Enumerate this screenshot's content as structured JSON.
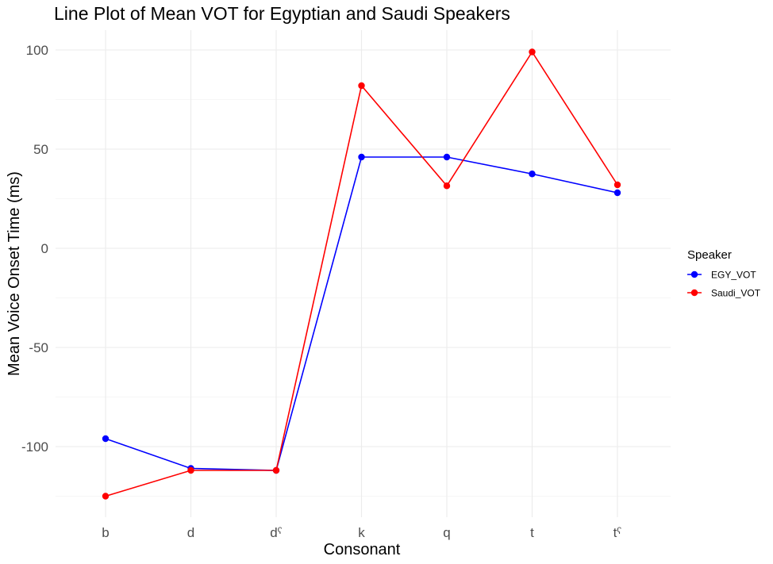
{
  "chart_data": {
    "type": "line",
    "title": "Line Plot of Mean VOT for Egyptian and Saudi Speakers",
    "xlabel": "Consonant",
    "ylabel": "Mean Voice Onset Time (ms)",
    "categories": [
      "b",
      "d",
      "dˤ",
      "k",
      "q",
      "t",
      "tˤ"
    ],
    "ylim": [
      -126,
      100
    ],
    "yticks": [
      -100,
      -50,
      0,
      50,
      100
    ],
    "grid": true,
    "legend": {
      "title": "Speaker",
      "position": "right"
    },
    "series": [
      {
        "name": "EGY_VOT",
        "color": "#0000ff",
        "values": [
          -96,
          -111,
          -112,
          46,
          46,
          37.5,
          28
        ]
      },
      {
        "name": "Saudi_VOT",
        "color": "#ff0000",
        "values": [
          -125,
          -112,
          -112,
          82,
          31.5,
          99,
          32
        ]
      }
    ]
  }
}
